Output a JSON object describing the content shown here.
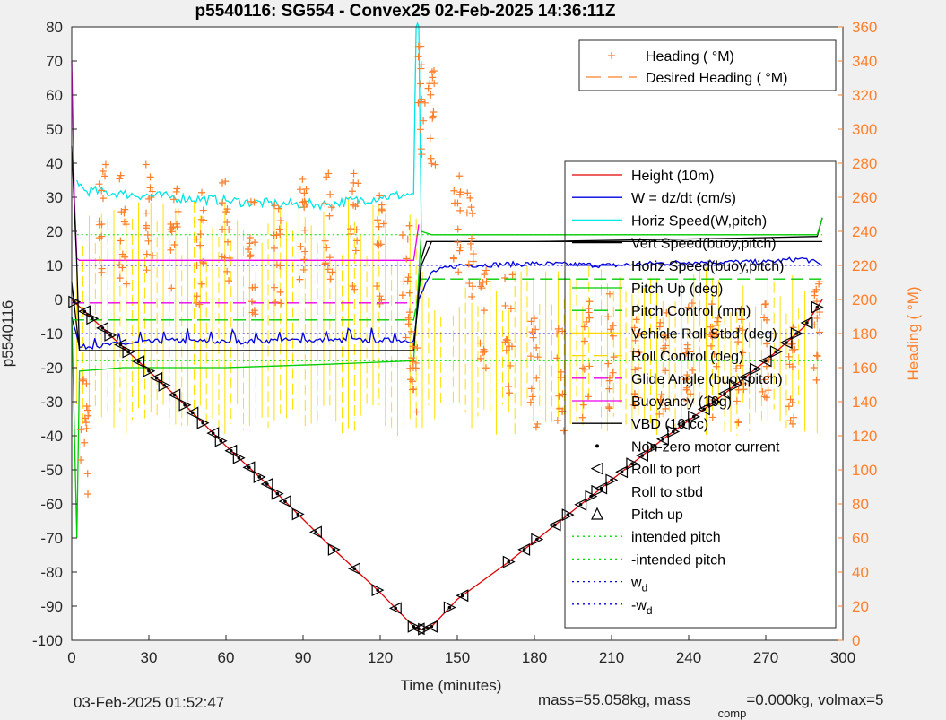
{
  "chart_data": {
    "type": "line",
    "title": "p5540116: SG554 - Convex25 02-Feb-2025 14:36:11Z",
    "xlabel": "Time (minutes)",
    "ylabel": "p5540116",
    "y2label": "Heading (  °M)",
    "xlim": [
      0,
      300
    ],
    "ylim": [
      -100,
      80
    ],
    "y2lim": [
      0,
      360
    ],
    "xticks": [
      0,
      30,
      60,
      90,
      120,
      150,
      180,
      210,
      240,
      270,
      300
    ],
    "yticks": [
      -100,
      -90,
      -80,
      -70,
      -60,
      -50,
      -40,
      -30,
      -20,
      -10,
      0,
      10,
      20,
      30,
      40,
      50,
      60,
      70,
      80
    ],
    "y2ticks": [
      0,
      20,
      40,
      60,
      80,
      100,
      120,
      140,
      160,
      180,
      200,
      220,
      240,
      260,
      280,
      300,
      320,
      340,
      360
    ],
    "grid": false,
    "heading_legend": {
      "position": "top-right",
      "entries": [
        {
          "label": "Heading (  °M)",
          "color": "#ff7f2a",
          "style": "plus"
        },
        {
          "label": "Desired Heading (  °M)",
          "color": "#ff7f2a",
          "style": "dash"
        }
      ]
    },
    "main_legend": {
      "position": "right",
      "entries": [
        {
          "label": "Height (10m)",
          "color": "#e00000",
          "style": "line"
        },
        {
          "label": "W = dz/dt (cm/s)",
          "color": "#0000dd",
          "style": "line"
        },
        {
          "label": "Horiz Speed(W,pitch)",
          "color": "#00e5e5",
          "style": "line"
        },
        {
          "label": "Vert Speed(buoy,pitch)",
          "color": "#000000",
          "style": "line"
        },
        {
          "label": "Horiz Speed(buoy,pitch)",
          "color": "#0000dd",
          "style": "line"
        },
        {
          "label": "Pitch Up (deg)",
          "color": "#00cc00",
          "style": "line"
        },
        {
          "label": "Pitch Control (mm)",
          "color": "#00cc00",
          "style": "dash"
        },
        {
          "label": "Vehicle Roll Stbd (deg)",
          "color": "#ffd700",
          "style": "line"
        },
        {
          "label": "Roll Control (deg)",
          "color": "#ffd700",
          "style": "dash"
        },
        {
          "label": "Glide Angle (buoy,pitch)",
          "color": "#ee00ee",
          "style": "dash"
        },
        {
          "label": "Buoyancy (10g)",
          "color": "#ee00ee",
          "style": "line"
        },
        {
          "label": "VBD (10 cc)",
          "color": "#000000",
          "style": "line"
        },
        {
          "label": "Non-zero motor current",
          "color": "#000000",
          "style": "dot"
        },
        {
          "label": "Roll to port",
          "color": "#000000",
          "style": "tri-left"
        },
        {
          "label": "Roll to stbd",
          "color": "#000000",
          "style": "tri-right"
        },
        {
          "label": "Pitch up",
          "color": "#000000",
          "style": "tri-up"
        },
        {
          "label": "intended pitch",
          "color": "#00dd00",
          "style": "dotline"
        },
        {
          "label": "-intended pitch",
          "color": "#00dd00",
          "style": "dotline"
        },
        {
          "label": "w",
          "sub": "d",
          "color": "#0000dd",
          "style": "dotline"
        },
        {
          "label": "-w",
          "sub": "d",
          "color": "#0000dd",
          "style": "dotline"
        }
      ]
    },
    "series": [
      {
        "name": "Height (10m)",
        "color": "#e00000",
        "points": [
          [
            0,
            0
          ],
          [
            20,
            -14
          ],
          [
            40,
            -28
          ],
          [
            60,
            -43
          ],
          [
            80,
            -57
          ],
          [
            100,
            -72
          ],
          [
            120,
            -86
          ],
          [
            133,
            -96
          ],
          [
            136,
            -97
          ],
          [
            140,
            -96
          ],
          [
            150,
            -88
          ],
          [
            170,
            -77
          ],
          [
            190,
            -65
          ],
          [
            210,
            -53
          ],
          [
            230,
            -41
          ],
          [
            250,
            -30
          ],
          [
            270,
            -18
          ],
          [
            285,
            -8
          ],
          [
            292,
            0
          ]
        ]
      },
      {
        "name": "W = dz/dt (cm/s)",
        "color": "#0000dd",
        "points": [
          [
            0,
            -5
          ],
          [
            3,
            -14
          ],
          [
            20,
            -13
          ],
          [
            40,
            -12
          ],
          [
            60,
            -12.5
          ],
          [
            80,
            -12
          ],
          [
            100,
            -12
          ],
          [
            120,
            -12
          ],
          [
            133,
            -12
          ],
          [
            135,
            0
          ],
          [
            140,
            8
          ],
          [
            150,
            10
          ],
          [
            180,
            10.5
          ],
          [
            210,
            10
          ],
          [
            240,
            11
          ],
          [
            270,
            11
          ],
          [
            285,
            12
          ],
          [
            292,
            10
          ]
        ]
      },
      {
        "name": "Horiz Speed(W,pitch)",
        "color": "#00e5e5",
        "points": [
          [
            2,
            35
          ],
          [
            5,
            32
          ],
          [
            20,
            31
          ],
          [
            40,
            30
          ],
          [
            60,
            29
          ],
          [
            80,
            28
          ],
          [
            100,
            28
          ],
          [
            120,
            30
          ],
          [
            133,
            31
          ],
          [
            134,
            80
          ],
          [
            135,
            80
          ],
          [
            136,
            20
          ]
        ]
      },
      {
        "name": "Vert Speed(buoy,pitch)",
        "color": "#000000",
        "points": [
          [
            0,
            5
          ],
          [
            3,
            -15
          ],
          [
            40,
            -15
          ],
          [
            80,
            -15
          ],
          [
            133,
            -15
          ],
          [
            136,
            10
          ],
          [
            140,
            17
          ],
          [
            180,
            17
          ],
          [
            220,
            17.5
          ],
          [
            260,
            18
          ],
          [
            290,
            18.5
          ],
          [
            292,
            24
          ]
        ]
      },
      {
        "name": "Pitch Up (deg)",
        "color": "#00cc00",
        "points": [
          [
            0,
            -5
          ],
          [
            2,
            -70
          ],
          [
            3,
            -21
          ],
          [
            20,
            -20
          ],
          [
            60,
            -20
          ],
          [
            100,
            -19
          ],
          [
            133,
            -18
          ],
          [
            136,
            20
          ],
          [
            140,
            19
          ],
          [
            180,
            19
          ],
          [
            220,
            19
          ],
          [
            260,
            19
          ],
          [
            290,
            19
          ],
          [
            292,
            24
          ]
        ]
      },
      {
        "name": "Pitch Control (mm)",
        "color": "#00cc00",
        "dash": true,
        "points": [
          [
            0,
            -6
          ],
          [
            133,
            -6
          ],
          [
            136,
            6
          ],
          [
            292,
            6
          ]
        ]
      },
      {
        "name": "Buoyancy (10g)",
        "color": "#ee00ee",
        "points": [
          [
            0,
            70
          ],
          [
            1,
            30
          ],
          [
            2,
            12
          ],
          [
            3,
            11.5
          ],
          [
            133,
            11.5
          ],
          [
            135,
            22
          ]
        ]
      },
      {
        "name": "Glide Angle (buoy,pitch)",
        "color": "#ee00ee",
        "dash": true,
        "points": [
          [
            0,
            -1
          ],
          [
            133,
            -1
          ]
        ]
      },
      {
        "name": "VBD (10 cc)",
        "color": "#000000",
        "points": [
          [
            0,
            45
          ],
          [
            2,
            10
          ],
          [
            3,
            -15
          ],
          [
            133,
            -15
          ],
          [
            136,
            12
          ],
          [
            138,
            17
          ],
          [
            292,
            17
          ]
        ]
      }
    ],
    "reference_lines": [
      {
        "name": "intended pitch",
        "y": 19,
        "color": "#00dd00"
      },
      {
        "name": "-intended pitch",
        "y": -18,
        "color": "#00dd00"
      },
      {
        "name": "w_d",
        "y": 10,
        "color": "#0000dd"
      },
      {
        "name": "-w_d",
        "y": -10,
        "color": "#0000dd"
      }
    ],
    "heading_cluster_centers": [
      [
        5,
        120
      ],
      [
        12,
        250
      ],
      [
        20,
        240
      ],
      [
        30,
        250
      ],
      [
        40,
        240
      ],
      [
        50,
        230
      ],
      [
        60,
        245
      ],
      [
        70,
        225
      ],
      [
        80,
        230
      ],
      [
        90,
        240
      ],
      [
        100,
        240
      ],
      [
        110,
        240
      ],
      [
        120,
        230
      ],
      [
        130,
        210
      ],
      [
        133,
        160
      ],
      [
        136,
        320
      ],
      [
        140,
        300
      ],
      [
        150,
        250
      ],
      [
        155,
        230
      ],
      [
        160,
        185
      ],
      [
        170,
        180
      ],
      [
        180,
        160
      ],
      [
        190,
        150
      ],
      [
        200,
        165
      ],
      [
        210,
        170
      ],
      [
        220,
        165
      ],
      [
        230,
        160
      ],
      [
        240,
        170
      ],
      [
        250,
        165
      ],
      [
        260,
        160
      ],
      [
        270,
        165
      ],
      [
        280,
        150
      ],
      [
        290,
        180
      ]
    ],
    "marker_x_minutes": [
      1,
      5,
      8,
      12,
      15,
      19,
      22,
      26,
      30,
      33,
      36,
      40,
      44,
      47,
      51,
      55,
      58,
      62,
      65,
      69,
      73,
      76,
      80,
      83,
      88,
      95,
      102,
      110,
      119,
      126,
      133,
      135,
      137,
      140,
      147,
      152,
      170,
      176,
      181,
      188,
      193,
      198,
      202,
      206,
      210,
      214,
      218,
      222,
      226,
      230,
      234,
      238,
      242,
      246,
      250,
      254,
      258,
      262,
      266,
      270,
      274,
      278,
      282,
      286,
      290
    ]
  },
  "footer": {
    "timestamp": "03-Feb-2025 01:52:47",
    "mass_text": "mass=55.058kg, mass",
    "comp_sub": "comp",
    "comp_text": "=0.000kg, volmax=5"
  }
}
